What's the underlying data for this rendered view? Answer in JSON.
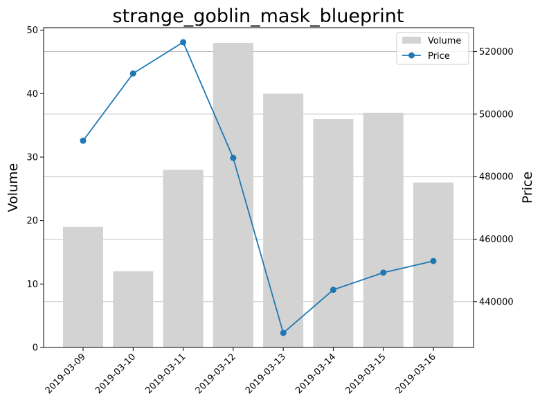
{
  "chart_data": {
    "type": "bar+line",
    "title": "strange_goblin_mask_blueprint",
    "xlabel": "",
    "categories": [
      "2019-03-09",
      "2019-03-10",
      "2019-03-11",
      "2019-03-12",
      "2019-03-13",
      "2019-03-14",
      "2019-03-15",
      "2019-03-16"
    ],
    "series": [
      {
        "name": "Volume",
        "type": "bar",
        "axis": "left",
        "color": "#d3d3d3",
        "values": [
          19,
          12,
          28,
          48,
          40,
          36,
          37,
          26
        ]
      },
      {
        "name": "Price",
        "type": "line",
        "axis": "right",
        "color": "#1f77b4",
        "values": [
          491500,
          513000,
          523000,
          486000,
          430000,
          443800,
          449300,
          453000
        ]
      }
    ],
    "left_axis": {
      "label": "Volume",
      "ylim": [
        0,
        50.4
      ],
      "ticks": [
        0,
        10,
        20,
        30,
        40,
        50
      ],
      "tick_labels": [
        "0",
        "10",
        "20",
        "30",
        "40",
        "50"
      ]
    },
    "right_axis": {
      "label": "Price",
      "ylim": [
        425350,
        527650
      ],
      "ticks": [
        440000,
        460000,
        480000,
        500000,
        520000
      ],
      "tick_labels": [
        "440000",
        "460000",
        "480000",
        "500000",
        "520000"
      ]
    },
    "grid": "horizontal on right-axis ticks",
    "legend_position": "top-right"
  }
}
